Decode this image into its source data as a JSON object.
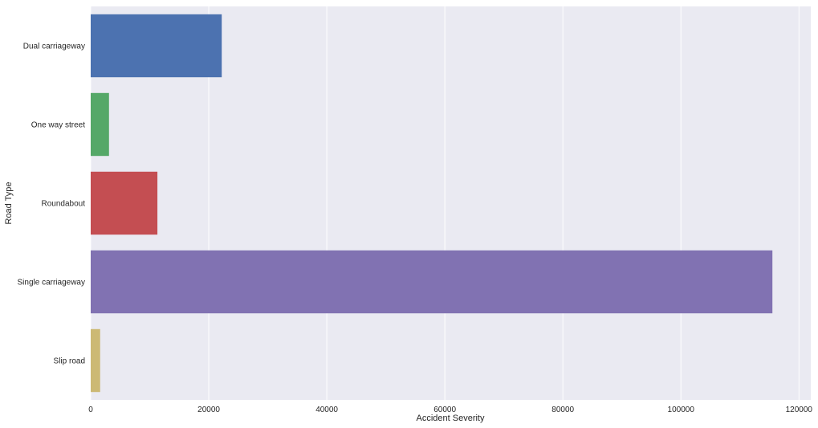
{
  "chart_data": {
    "type": "bar",
    "orientation": "horizontal",
    "categories": [
      "Dual carriageway",
      "One way street",
      "Roundabout",
      "Single carriageway",
      "Slip road"
    ],
    "values": [
      22200,
      3100,
      11300,
      115500,
      1600
    ],
    "colors": [
      "#4c72b0",
      "#55a868",
      "#c44e52",
      "#8172b2",
      "#ccb974"
    ],
    "xlabel": "Accident Severity",
    "ylabel": "Road Type",
    "xlim": [
      0,
      122000
    ],
    "xticks": [
      0,
      20000,
      40000,
      60000,
      80000,
      100000,
      120000
    ],
    "xtick_labels": [
      "0",
      "20000",
      "40000",
      "60000",
      "80000",
      "100000",
      "120000"
    ],
    "grid": true,
    "background_color": "#eaeaf2"
  }
}
